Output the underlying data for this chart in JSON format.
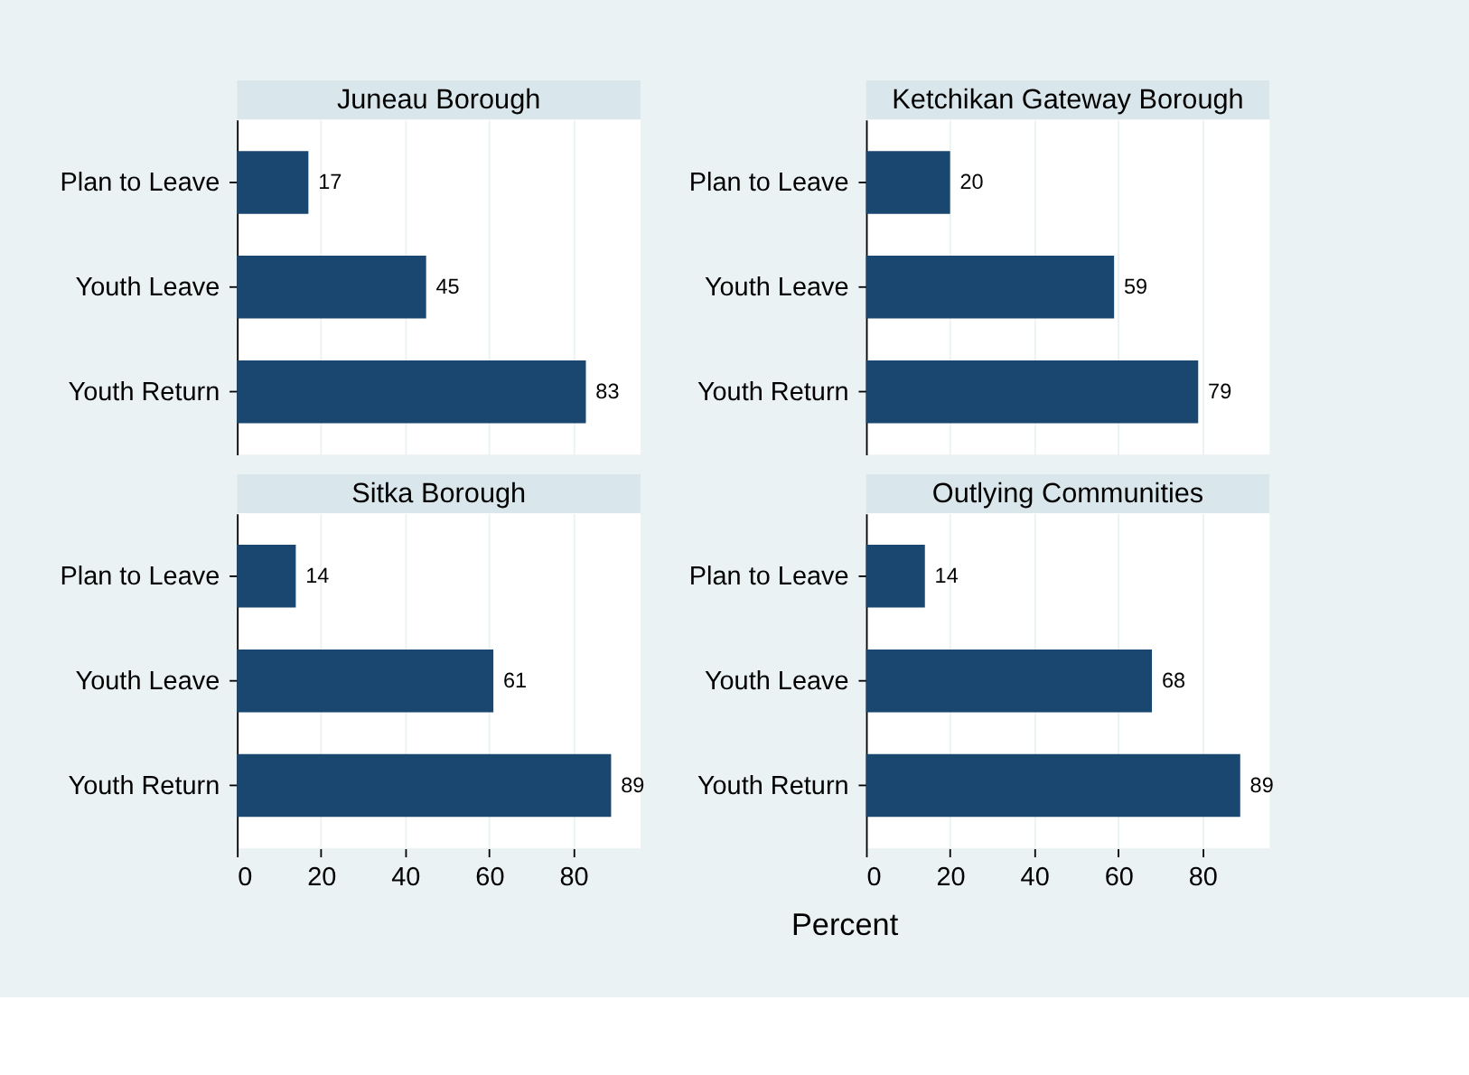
{
  "chart_data": [
    {
      "type": "bar",
      "orientation": "horizontal",
      "title": "Juneau Borough",
      "categories": [
        "Plan to Leave",
        "Youth Leave",
        "Youth Return"
      ],
      "values": [
        17,
        45,
        83
      ],
      "color": "#1a476f",
      "data_labels": true,
      "xlim": [
        0,
        96
      ],
      "xticks": [
        0,
        20,
        40,
        60,
        80
      ],
      "grid": "x",
      "tick_labels": "y"
    },
    {
      "type": "bar",
      "orientation": "horizontal",
      "title": "Ketchikan Gateway Borough",
      "categories": [
        "Plan to Leave",
        "Youth Leave",
        "Youth Return"
      ],
      "values": [
        20,
        59,
        79
      ],
      "color": "#1a476f",
      "data_labels": true,
      "xlim": [
        0,
        96
      ],
      "xticks": [
        0,
        20,
        40,
        60,
        80
      ],
      "grid": "x",
      "tick_labels": "y"
    },
    {
      "type": "bar",
      "orientation": "horizontal",
      "title": "Sitka Borough",
      "categories": [
        "Plan to Leave",
        "Youth Leave",
        "Youth Return"
      ],
      "values": [
        14,
        61,
        89
      ],
      "color": "#1a476f",
      "data_labels": true,
      "xlim": [
        0,
        96
      ],
      "xticks": [
        0,
        20,
        40,
        60,
        80
      ],
      "grid": "x",
      "xlabel": "Percent"
    },
    {
      "type": "bar",
      "orientation": "horizontal",
      "title": "Outlying Communities",
      "categories": [
        "Plan to Leave",
        "Youth Leave",
        "Youth Return"
      ],
      "values": [
        14,
        68,
        89
      ],
      "color": "#1a476f",
      "data_labels": true,
      "xlim": [
        0,
        96
      ],
      "xticks": [
        0,
        20,
        40,
        60,
        80
      ],
      "grid": "x"
    }
  ]
}
